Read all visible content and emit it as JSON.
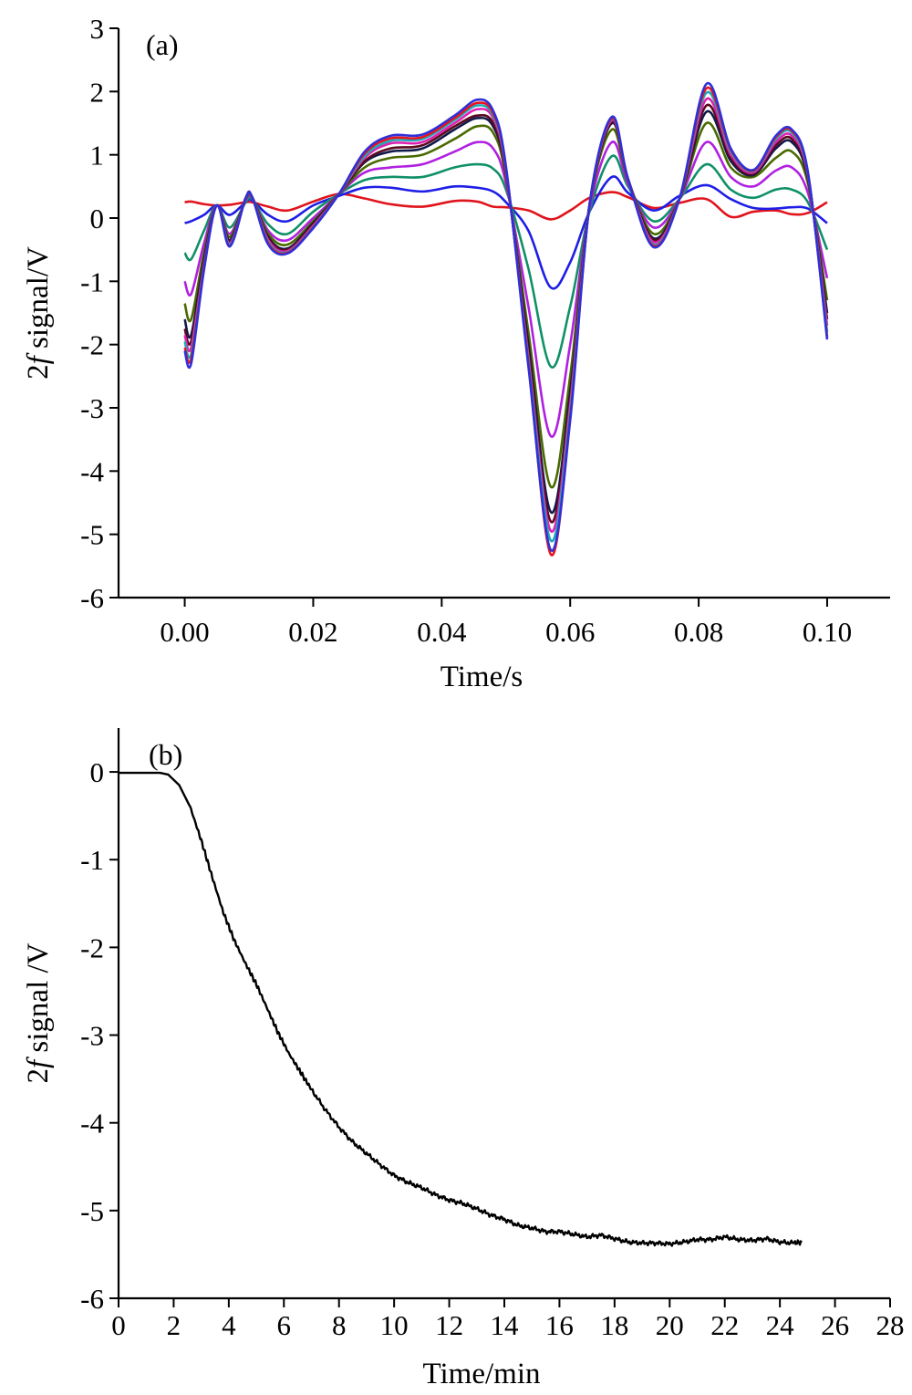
{
  "chart_data": [
    {
      "type": "line",
      "panel_label": "(a)",
      "xlabel": "Time/s",
      "ylabel_prefix": "2",
      "ylabel_italic": "f",
      "ylabel_suffix": " signal/V",
      "xlim": [
        -0.0103,
        0.1098
      ],
      "ylim": [
        -6,
        3
      ],
      "x_ticks": [
        "0.00",
        "0.02",
        "0.04",
        "0.06",
        "0.08",
        "0.10"
      ],
      "x_tick_values": [
        0,
        0.02,
        0.04,
        0.06,
        0.08,
        0.1
      ],
      "y_ticks": [
        "3",
        "2",
        "1",
        "0",
        "-1",
        "-2",
        "-3",
        "-4",
        "-5",
        "-6"
      ],
      "y_tick_values": [
        3,
        2,
        1,
        0,
        -1,
        -2,
        -3,
        -4,
        -5,
        -6
      ],
      "grid": false,
      "legend": "none",
      "x": [
        0,
        0.001,
        0.003,
        0.005,
        0.007,
        0.0095,
        0.0105,
        0.013,
        0.016,
        0.02,
        0.024,
        0.028,
        0.032,
        0.037,
        0.042,
        0.0455,
        0.048,
        0.05,
        0.0535,
        0.057,
        0.06,
        0.063,
        0.0665,
        0.069,
        0.073,
        0.077,
        0.0812,
        0.085,
        0.0885,
        0.092,
        0.0945,
        0.097,
        0.1
      ],
      "series": [
        {
          "color": "#e0141c",
          "values": [
            0.25,
            0.26,
            0.22,
            0.2,
            0.21,
            0.25,
            0.25,
            0.18,
            0.12,
            0.26,
            0.38,
            0.31,
            0.22,
            0.18,
            0.27,
            0.26,
            0.18,
            0.17,
            0.12,
            -0.02,
            0.12,
            0.32,
            0.41,
            0.33,
            0.16,
            0.24,
            0.3,
            0.02,
            0.1,
            0.12,
            0.06,
            0.08,
            0.25
          ]
        },
        {
          "color": "#1e1ee6",
          "values": [
            -0.08,
            -0.05,
            0.05,
            0.2,
            0.05,
            0.25,
            0.28,
            0.05,
            -0.05,
            0.2,
            0.35,
            0.48,
            0.48,
            0.42,
            0.5,
            0.48,
            0.42,
            0.25,
            -0.2,
            -1.1,
            -0.7,
            0.1,
            0.65,
            0.4,
            0.12,
            0.35,
            0.52,
            0.3,
            0.16,
            0.15,
            0.17,
            0.15,
            -0.08
          ]
        },
        {
          "color": "#109068",
          "values": [
            -0.55,
            -0.65,
            -0.2,
            0.2,
            -0.15,
            0.25,
            0.3,
            -0.1,
            -0.25,
            0.1,
            0.38,
            0.6,
            0.65,
            0.65,
            0.8,
            0.85,
            0.78,
            0.45,
            -0.8,
            -2.35,
            -1.4,
            0.1,
            0.98,
            0.5,
            -0.05,
            0.3,
            0.85,
            0.45,
            0.32,
            0.45,
            0.45,
            0.25,
            -0.5
          ]
        },
        {
          "color": "#b020e0",
          "values": [
            -1.0,
            -1.2,
            -0.4,
            0.2,
            -0.25,
            0.28,
            0.32,
            -0.2,
            -0.35,
            0.0,
            0.38,
            0.72,
            0.8,
            0.85,
            1.05,
            1.2,
            1.1,
            0.55,
            -1.4,
            -3.45,
            -2.0,
            0.15,
            1.2,
            0.55,
            -0.15,
            0.3,
            1.2,
            0.65,
            0.5,
            0.75,
            0.8,
            0.4,
            -0.95
          ]
        },
        {
          "color": "#4a6a00",
          "values": [
            -1.35,
            -1.6,
            -0.55,
            0.2,
            -0.3,
            0.3,
            0.33,
            -0.25,
            -0.42,
            -0.05,
            0.38,
            0.8,
            0.95,
            1.0,
            1.25,
            1.45,
            1.35,
            0.65,
            -1.8,
            -4.25,
            -2.5,
            0.2,
            1.4,
            0.6,
            -0.25,
            0.3,
            1.5,
            0.8,
            0.65,
            0.95,
            1.05,
            0.55,
            -1.3
          ]
        },
        {
          "color": "#101a4a",
          "values": [
            -1.6,
            -1.85,
            -0.65,
            0.2,
            -0.35,
            0.32,
            0.33,
            -0.3,
            -0.48,
            -0.08,
            0.38,
            0.88,
            1.05,
            1.1,
            1.4,
            1.58,
            1.45,
            0.7,
            -2.0,
            -4.65,
            -2.75,
            0.2,
            1.5,
            0.62,
            -0.32,
            0.3,
            1.68,
            0.9,
            0.68,
            1.1,
            1.2,
            0.62,
            -1.5
          ]
        },
        {
          "color": "#5a0a1e",
          "values": [
            -1.75,
            -1.95,
            -0.7,
            0.2,
            -0.38,
            0.32,
            0.33,
            -0.32,
            -0.5,
            -0.1,
            0.38,
            0.9,
            1.1,
            1.15,
            1.45,
            1.62,
            1.5,
            0.72,
            -2.1,
            -4.8,
            -2.85,
            0.2,
            1.52,
            0.62,
            -0.35,
            0.3,
            1.78,
            0.95,
            0.7,
            1.15,
            1.25,
            0.65,
            -1.6
          ]
        },
        {
          "color": "#e020b0",
          "values": [
            -1.85,
            -2.05,
            -0.75,
            0.2,
            -0.4,
            0.32,
            0.33,
            -0.35,
            -0.52,
            -0.12,
            0.38,
            0.95,
            1.18,
            1.2,
            1.5,
            1.72,
            1.58,
            0.75,
            -2.2,
            -4.95,
            -2.95,
            0.2,
            1.55,
            0.62,
            -0.38,
            0.3,
            1.88,
            1.0,
            0.72,
            1.2,
            1.3,
            0.68,
            -1.7
          ]
        },
        {
          "color": "#20a8b8",
          "values": [
            -1.95,
            -2.15,
            -0.78,
            0.2,
            -0.42,
            0.32,
            0.33,
            -0.38,
            -0.54,
            -0.14,
            0.38,
            0.98,
            1.22,
            1.25,
            1.55,
            1.78,
            1.62,
            0.78,
            -2.25,
            -5.1,
            -3.05,
            0.2,
            1.57,
            0.62,
            -0.42,
            0.3,
            1.98,
            1.05,
            0.74,
            1.25,
            1.35,
            0.7,
            -1.8
          ]
        },
        {
          "color": "#e8141c",
          "values": [
            -2.05,
            -2.22,
            -0.8,
            0.2,
            -0.44,
            0.32,
            0.33,
            -0.4,
            -0.55,
            -0.15,
            0.38,
            1.02,
            1.26,
            1.28,
            1.58,
            1.82,
            1.66,
            0.8,
            -2.3,
            -5.32,
            -3.15,
            0.2,
            1.58,
            0.62,
            -0.44,
            0.3,
            2.05,
            1.08,
            0.75,
            1.28,
            1.38,
            0.72,
            -1.88
          ]
        },
        {
          "color": "#3030d8",
          "values": [
            -2.1,
            -2.3,
            -0.82,
            0.2,
            -0.45,
            0.32,
            0.33,
            -0.42,
            -0.56,
            -0.16,
            0.38,
            1.05,
            1.3,
            1.32,
            1.62,
            1.87,
            1.7,
            0.82,
            -2.35,
            -5.25,
            -3.2,
            0.2,
            1.6,
            0.62,
            -0.46,
            0.3,
            2.12,
            1.1,
            0.76,
            1.3,
            1.4,
            0.73,
            -1.92
          ]
        }
      ]
    },
    {
      "type": "line",
      "panel_label": "(b)",
      "xlabel": "Time/min",
      "ylabel_prefix": "2",
      "ylabel_italic": "f",
      "ylabel_suffix": " signal /V",
      "xlim": [
        0,
        28
      ],
      "ylim": [
        -6,
        0.5
      ],
      "x_ticks": [
        "0",
        "2",
        "4",
        "6",
        "8",
        "10",
        "12",
        "14",
        "16",
        "18",
        "20",
        "22",
        "24",
        "26",
        "28"
      ],
      "x_tick_values": [
        0,
        2,
        4,
        6,
        8,
        10,
        12,
        14,
        16,
        18,
        20,
        22,
        24,
        26,
        28
      ],
      "y_ticks": [
        "0",
        "-1",
        "-2",
        "-3",
        "-4",
        "-5",
        "-6"
      ],
      "y_tick_values": [
        0,
        -1,
        -2,
        -3,
        -4,
        -5,
        -6
      ],
      "grid": false,
      "legend": "none",
      "series": [
        {
          "color": "#000000",
          "x": [
            0,
            0.5,
            1,
            1.5,
            1.8,
            2.2,
            2.6,
            3.0,
            3.4,
            3.8,
            4.2,
            4.6,
            5.0,
            5.4,
            5.8,
            6.2,
            6.6,
            7.0,
            7.5,
            8.0,
            8.5,
            9.0,
            9.5,
            10.0,
            10.5,
            11.0,
            11.5,
            12.0,
            12.5,
            13.0,
            13.5,
            14.0,
            14.5,
            15.0,
            15.5,
            16.0,
            16.5,
            17.0,
            17.5,
            18.0,
            18.5,
            19.0,
            19.5,
            20.0,
            20.5,
            21.0,
            21.5,
            22.0,
            22.5,
            23.0,
            23.5,
            24.0,
            24.5,
            24.8
          ],
          "values": [
            -0.01,
            -0.01,
            -0.01,
            -0.01,
            -0.03,
            -0.15,
            -0.4,
            -0.78,
            -1.2,
            -1.6,
            -1.92,
            -2.18,
            -2.42,
            -2.7,
            -2.98,
            -3.22,
            -3.42,
            -3.62,
            -3.85,
            -4.05,
            -4.22,
            -4.35,
            -4.48,
            -4.6,
            -4.68,
            -4.74,
            -4.82,
            -4.88,
            -4.92,
            -4.98,
            -5.05,
            -5.1,
            -5.17,
            -5.2,
            -5.24,
            -5.24,
            -5.27,
            -5.3,
            -5.28,
            -5.32,
            -5.36,
            -5.37,
            -5.37,
            -5.38,
            -5.36,
            -5.33,
            -5.33,
            -5.3,
            -5.33,
            -5.34,
            -5.32,
            -5.36,
            -5.37,
            -5.36
          ]
        }
      ]
    }
  ]
}
